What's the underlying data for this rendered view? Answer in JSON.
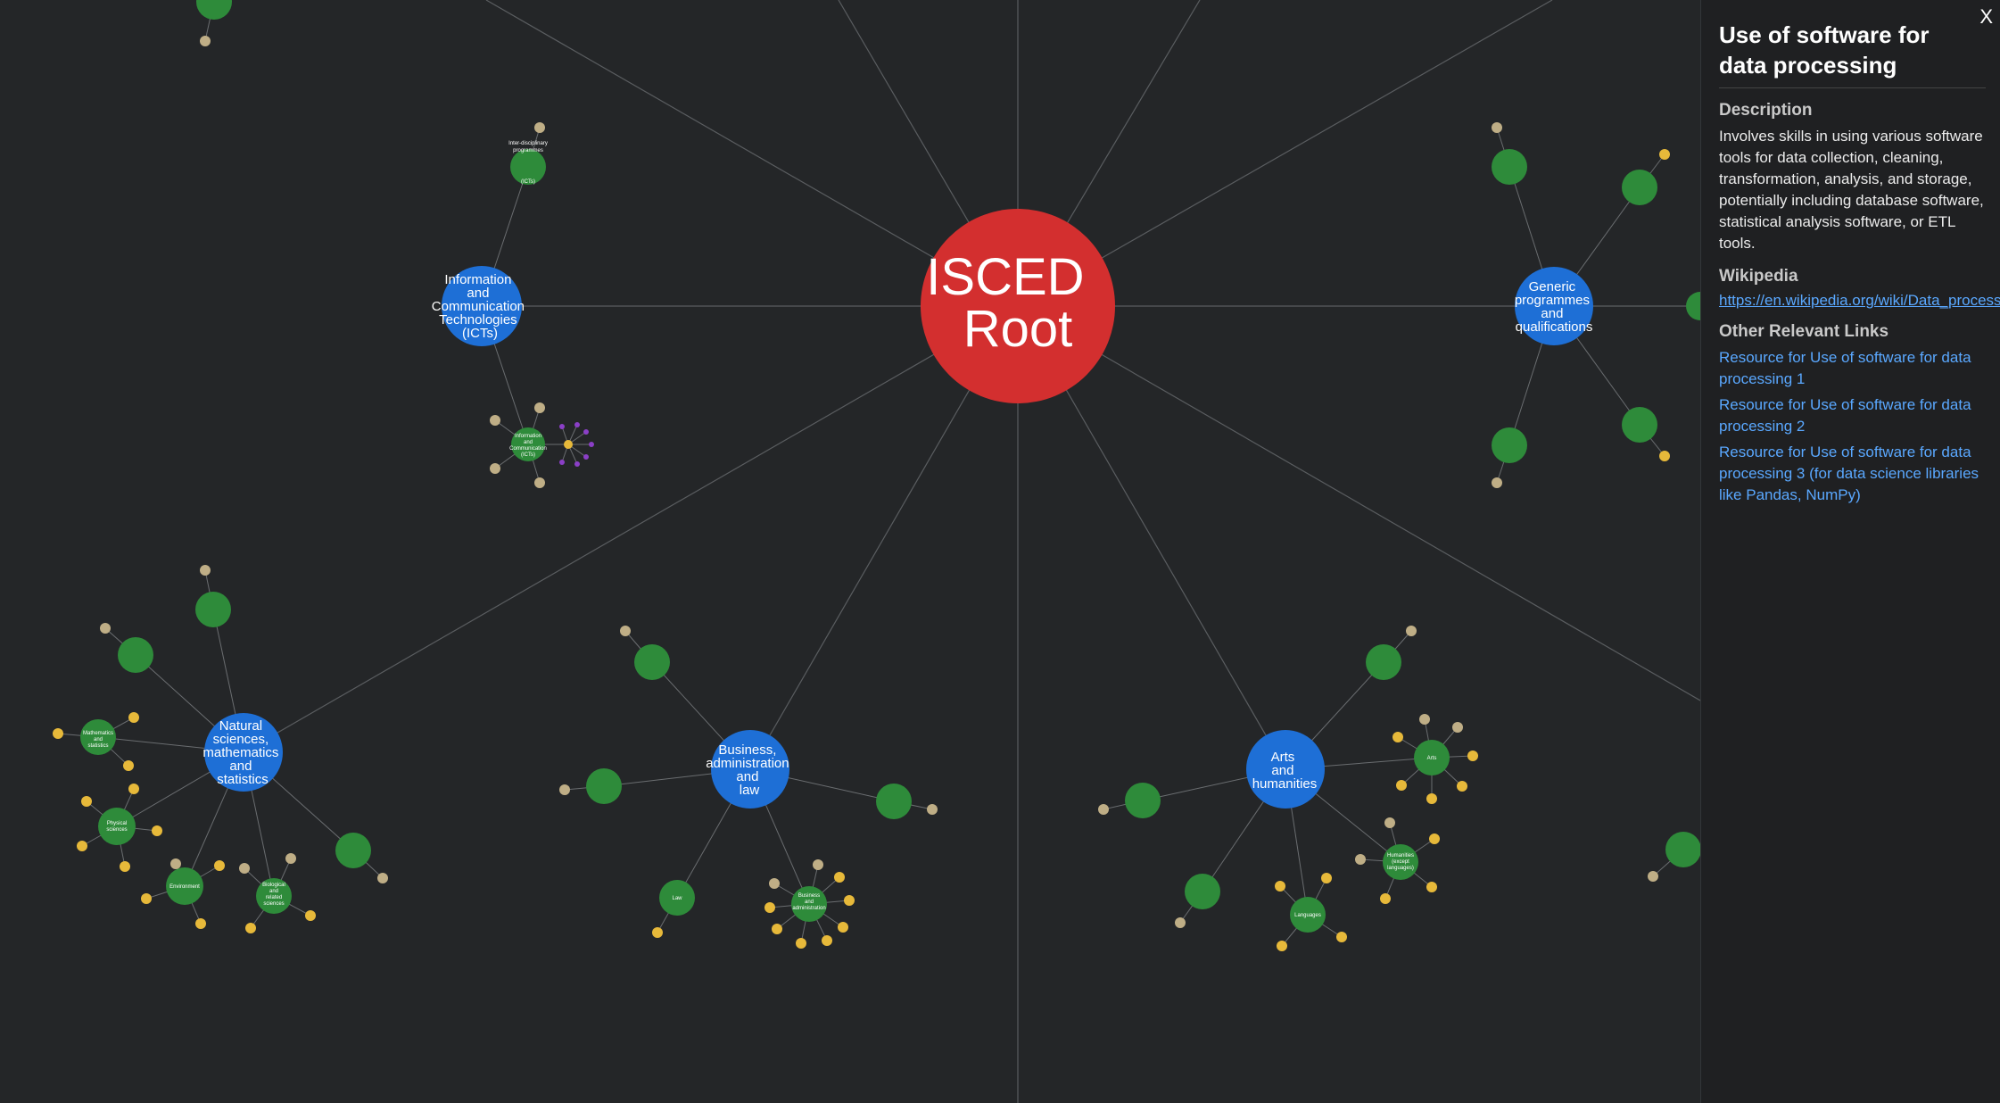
{
  "graph": {
    "root_label": [
      "ISCED",
      "Root"
    ],
    "categories": {
      "ict": [
        "Information",
        "and",
        "Communication",
        "Technologies",
        "(ICTs)"
      ],
      "generic": [
        "Generic",
        "programmes",
        "and",
        "qualifications"
      ],
      "natural": [
        "Natural",
        "sciences,",
        "mathematics",
        "and",
        "statistics"
      ],
      "business": [
        "Business,",
        "administration",
        "and",
        "law"
      ],
      "arts": [
        "Arts",
        "and",
        "humanities"
      ]
    },
    "subcategories": {
      "physical_sciences": [
        "Physical",
        "sciences"
      ],
      "environment": [
        "Environment"
      ],
      "biological": [
        "Biological",
        "and",
        "related",
        "sciences"
      ],
      "mathematics": [
        "Mathematics",
        "and",
        "statistics"
      ],
      "law": [
        "Law"
      ],
      "business_admin": [
        "Business",
        "and",
        "administration"
      ],
      "arts": [
        "Arts"
      ],
      "humanities": [
        "Humanities",
        "(except",
        "languages)"
      ],
      "languages": [
        "Languages"
      ],
      "ict_sub": [
        "Information",
        "and",
        "Communication",
        "Technologies",
        "(ICTs)"
      ]
    }
  },
  "panel": {
    "close_label": "X",
    "title": "Use of software for data processing",
    "description_heading": "Description",
    "description": "Involves skills in using various software tools for data collection, cleaning, transformation, analysis, and storage, potentially including database software, statistical analysis software, or ETL tools.",
    "wikipedia_heading": "Wikipedia",
    "wikipedia_link": "https://en.wikipedia.org/wiki/Data_processing",
    "other_links_heading": "Other Relevant Links",
    "links": [
      "Resource for Use of software for data processing 1",
      "Resource for Use of software for data processing 2",
      "Resource for Use of software for data processing 3 (for data science libraries like Pandas, NumPy)"
    ]
  }
}
